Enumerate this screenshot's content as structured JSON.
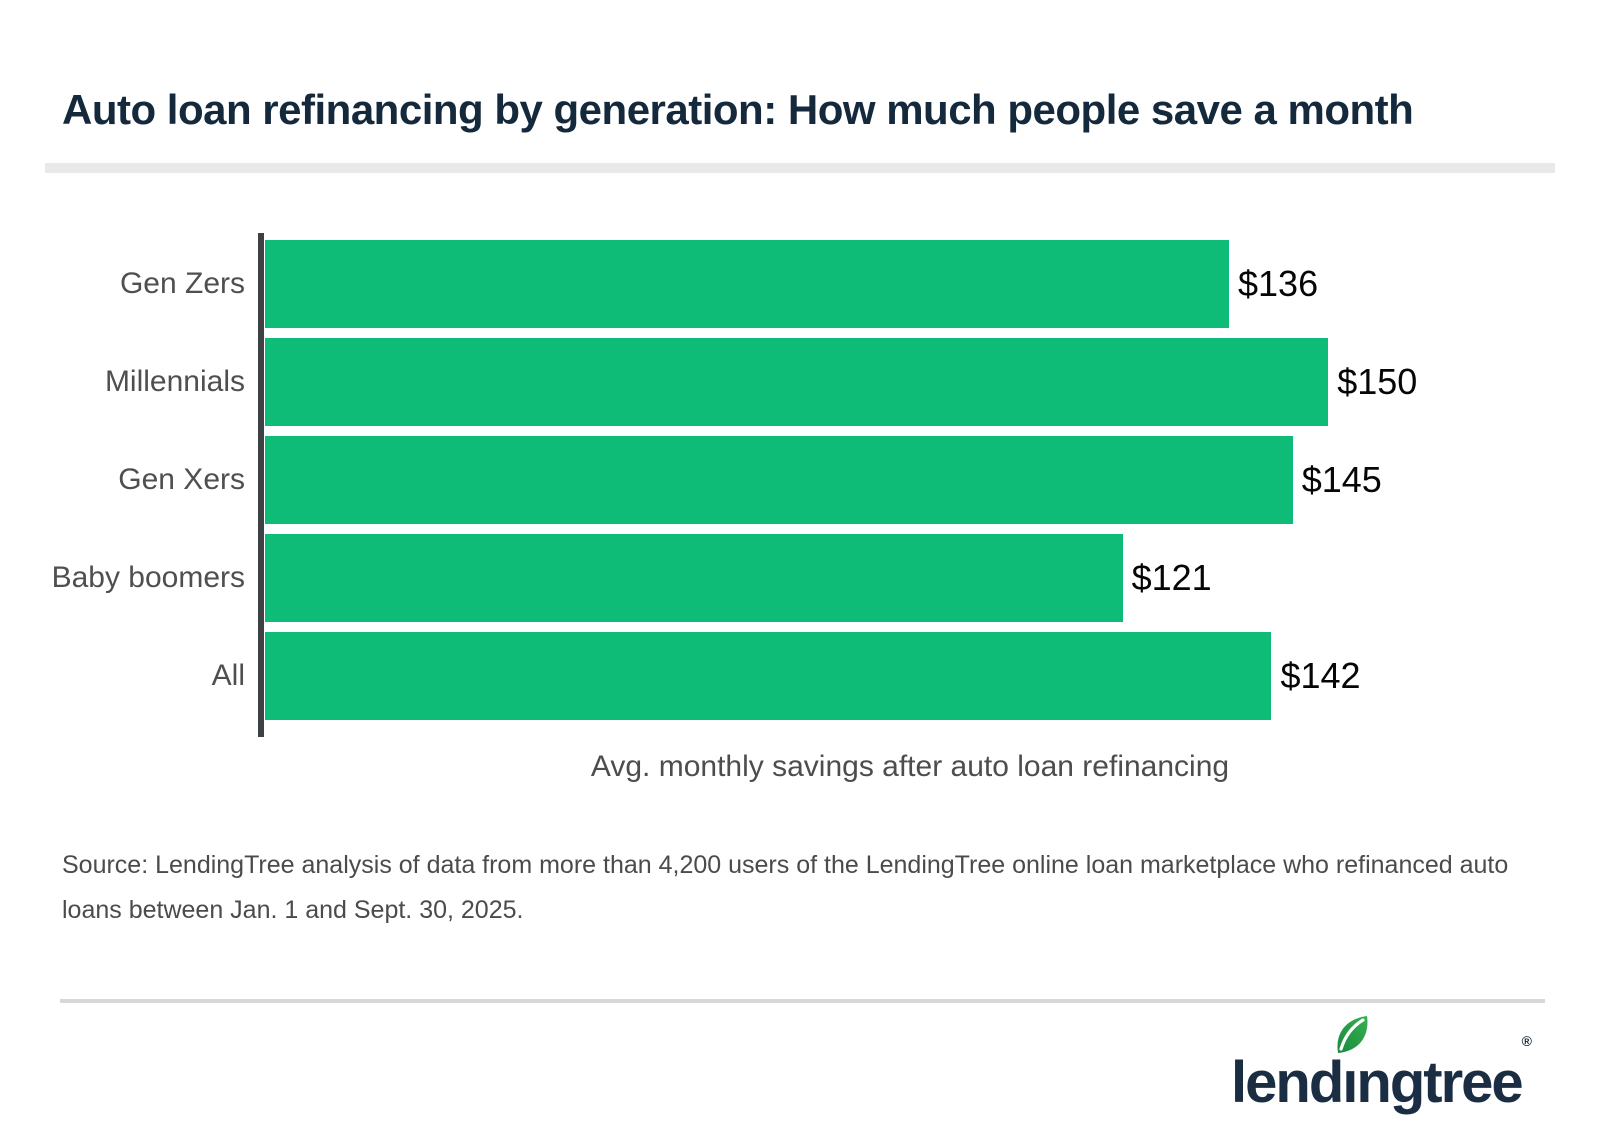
{
  "page": {
    "title": "Auto loan refinancing by generation: How much people save a month",
    "source_text": "Source: LendingTree analysis of data from more than 4,200 users of the LendingTree online loan marketplace who refinanced auto loans between Jan. 1 and Sept. 30, 2025."
  },
  "chart_data": {
    "type": "bar",
    "orientation": "horizontal",
    "title": "Auto loan refinancing by generation: How much people save a month",
    "categories": [
      "Gen Zers",
      "Millennials",
      "Gen Xers",
      "Baby boomers",
      "All"
    ],
    "values": [
      136,
      150,
      145,
      121,
      142
    ],
    "value_labels": [
      "$136",
      "$150",
      "$145",
      "$121",
      "$142"
    ],
    "xlabel": "Avg. monthly savings after auto loan refinancing",
    "ylabel": "",
    "xlim": [
      0,
      182
    ],
    "grid": "off",
    "legend": "none",
    "bar_color": "#0ebc78",
    "axis_line_color": "#3e4144",
    "value_label_color": "#060606",
    "category_label_color": "#4f4f4f"
  },
  "brand": {
    "logo_pre": "lend",
    "logo_i": "ı",
    "logo_post": "ngtree",
    "registered": "®",
    "navy": "#1b2d42",
    "leaf_green_dark": "#1a8a3f",
    "leaf_green_light": "#35b14e"
  }
}
